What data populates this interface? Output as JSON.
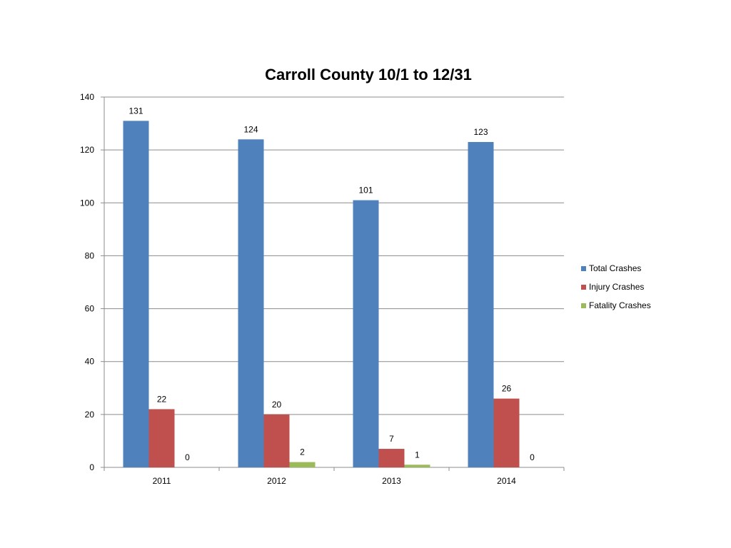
{
  "chart_data": {
    "type": "bar",
    "title": "Carroll County 10/1 to 12/31",
    "categories": [
      "2011",
      "2012",
      "2013",
      "2014"
    ],
    "series": [
      {
        "name": "Total Crashes",
        "color": "#4F81BD",
        "values": [
          131,
          124,
          101,
          123
        ]
      },
      {
        "name": "Injury Crashes",
        "color": "#C0504D",
        "values": [
          22,
          20,
          7,
          26
        ]
      },
      {
        "name": "Fatality Crashes",
        "color": "#9BBB59",
        "values": [
          0,
          2,
          1,
          0
        ]
      }
    ],
    "ylim": [
      0,
      140
    ],
    "yticks": [
      0,
      20,
      40,
      60,
      80,
      100,
      120,
      140
    ],
    "grid": true,
    "legend": "right",
    "data_labels": true
  }
}
